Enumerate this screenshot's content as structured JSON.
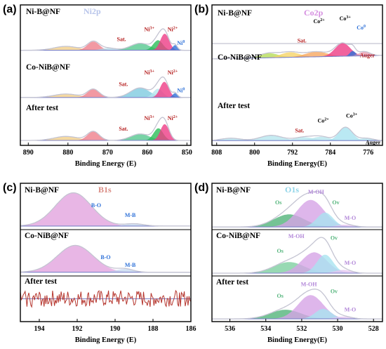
{
  "chart_data": [
    {
      "type": "area",
      "panel_label": "(a)",
      "core_level": "Ni2p",
      "xlabel": "Binding Energy (E)",
      "x_reversed": true,
      "xlim": [
        892,
        849
      ],
      "xticks": [
        890,
        880,
        870,
        860,
        850
      ],
      "core_color": "#b7c4ea",
      "rows": [
        {
          "label": "Ni-B@NF",
          "base": 0.12,
          "peaks": [
            {
              "center": 880.5,
              "height": 0.09,
              "width": 3.0,
              "color": "#f3d08a"
            },
            {
              "center": 873.6,
              "height": 0.2,
              "width": 1.5,
              "color": "#ef7f8c"
            },
            {
              "center": 869.8,
              "height": 0.05,
              "width": 1.8,
              "color": "#b7dde8"
            },
            {
              "center": 861.8,
              "height": 0.16,
              "width": 2.4,
              "color": "#56c890"
            },
            {
              "center": 857.3,
              "height": 0.23,
              "width": 1.2,
              "color": "#2bbd58"
            },
            {
              "center": 855.6,
              "height": 0.38,
              "width": 1.1,
              "color": "#ee3c86"
            },
            {
              "center": 853.0,
              "height": 0.12,
              "width": 0.6,
              "color": "#2e71d8"
            }
          ],
          "labels": [
            {
              "text": "Sat.",
              "x": 866.5,
              "y": 0.33,
              "color": "#b51e1e"
            },
            {
              "text": "Ni3+",
              "x": 859.5,
              "y": 0.56,
              "color": "#b51e1e"
            },
            {
              "text": "Ni2+",
              "x": 853.6,
              "y": 0.56,
              "color": "#b51e1e"
            },
            {
              "text": "Ni0",
              "x": 851.5,
              "y": 0.24,
              "color": "#2e71d8"
            }
          ]
        },
        {
          "label": "Co-NiB@NF",
          "base": 0.1,
          "peaks": [
            {
              "center": 880.5,
              "height": 0.08,
              "width": 3.0,
              "color": "#f3d08a"
            },
            {
              "center": 873.6,
              "height": 0.19,
              "width": 1.5,
              "color": "#ef7f8c"
            },
            {
              "center": 861.8,
              "height": 0.22,
              "width": 2.4,
              "color": "#7ecbe0"
            },
            {
              "center": 857.3,
              "height": 0.2,
              "width": 1.2,
              "color": "#b7e6ee"
            },
            {
              "center": 855.7,
              "height": 0.36,
              "width": 1.1,
              "color": "#ee3c86"
            },
            {
              "center": 853.0,
              "height": 0.1,
              "width": 0.6,
              "color": "#2e71d8"
            }
          ],
          "labels": [
            {
              "text": "Sat.",
              "x": 866.0,
              "y": 0.36,
              "color": "#b51e1e"
            },
            {
              "text": "Ni3+",
              "x": 859.5,
              "y": 0.63,
              "color": "#b51e1e"
            },
            {
              "text": "Ni2+",
              "x": 853.6,
              "y": 0.63,
              "color": "#b51e1e"
            },
            {
              "text": "Ni0",
              "x": 851.5,
              "y": 0.22,
              "color": "#2e71d8"
            }
          ]
        },
        {
          "label": "After test",
          "base": 0.12,
          "peaks": [
            {
              "center": 880.5,
              "height": 0.1,
              "width": 3.0,
              "color": "#f3d08a"
            },
            {
              "center": 873.6,
              "height": 0.22,
              "width": 1.5,
              "color": "#ef7f8c"
            },
            {
              "center": 861.8,
              "height": 0.16,
              "width": 2.4,
              "color": "#56c890"
            },
            {
              "center": 857.2,
              "height": 0.3,
              "width": 1.2,
              "color": "#2bbd58"
            },
            {
              "center": 855.6,
              "height": 0.4,
              "width": 1.1,
              "color": "#ee3c86"
            }
          ],
          "labels": [
            {
              "text": "Sat.",
              "x": 866.0,
              "y": 0.36,
              "color": "#b51e1e"
            },
            {
              "text": "Ni3+",
              "x": 859.5,
              "y": 0.62,
              "color": "#b51e1e"
            },
            {
              "text": "Ni2+",
              "x": 853.6,
              "y": 0.62,
              "color": "#b51e1e"
            }
          ]
        }
      ]
    },
    {
      "type": "area",
      "panel_label": "(b)",
      "core_level": "Co2p",
      "xlabel": "Binding Energy(E)",
      "x_reversed": true,
      "xlim": [
        809,
        773
      ],
      "xticks": [
        808,
        800,
        792,
        784,
        776
      ],
      "core_color": "#d58ee0",
      "rows": [
        {
          "label": "Ni-B@NF",
          "base": 0.1,
          "peaks": [],
          "labels": []
        },
        {
          "label": "Co-NiB@NF",
          "base": 0.8,
          "slope": 0.035,
          "peaks": [
            {
              "center": 797.0,
              "height": 0.09,
              "width": 2.0,
              "color": "#b6dd5a"
            },
            {
              "center": 792.5,
              "height": 0.1,
              "width": 2.0,
              "color": "#f6d469"
            },
            {
              "center": 787.0,
              "height": 0.1,
              "width": 2.3,
              "color": "#f7a860"
            },
            {
              "center": 781.4,
              "height": 0.26,
              "width": 1.6,
              "color": "#ee3c86"
            },
            {
              "center": 779.3,
              "height": 0.1,
              "width": 0.6,
              "color": "#2e71d8"
            },
            {
              "center": 776.8,
              "height": 0.08,
              "width": 1.2,
              "color": "#e8a0b4"
            }
          ],
          "labels": [
            {
              "text": "Sat.",
              "x": 790.0,
              "y": 1.09,
              "color": "#b51e1e"
            },
            {
              "text": "Co2+",
              "x": 786.4,
              "y": 1.47,
              "color": "#000000"
            },
            {
              "text": "Co3+",
              "x": 780.9,
              "y": 1.53,
              "color": "#000000"
            },
            {
              "text": "Co0",
              "x": 777.5,
              "y": 1.35,
              "color": "#2e71d8"
            },
            {
              "text": "Auger",
              "x": 776.2,
              "y": 0.8,
              "color": "#b51e1e"
            }
          ]
        },
        {
          "label": "After test",
          "base": 0.1,
          "peaks": [
            {
              "center": 805.0,
              "height": 0.05,
              "width": 2.0,
              "color": "#b7e6ee"
            },
            {
              "center": 796.5,
              "height": 0.11,
              "width": 2.3,
              "color": "#b7e6ee"
            },
            {
              "center": 789.5,
              "height": 0.07,
              "width": 2.0,
              "color": "#b7e6ee"
            },
            {
              "center": 786.0,
              "height": 0.08,
              "width": 1.8,
              "color": "#b7e6ee"
            },
            {
              "center": 780.8,
              "height": 0.28,
              "width": 1.4,
              "color": "#a9e3f0"
            },
            {
              "center": 776.5,
              "height": 0.05,
              "width": 1.5,
              "color": "#b7e6ee"
            }
          ],
          "labels": [
            {
              "text": "Sat.",
              "x": 790.5,
              "y": 0.27,
              "color": "#b51e1e"
            },
            {
              "text": "Co2+",
              "x": 785.5,
              "y": 0.48,
              "color": "#000000"
            },
            {
              "text": "Co3+",
              "x": 779.5,
              "y": 0.58,
              "color": "#000000"
            },
            {
              "text": "Auger",
              "x": 775.0,
              "y": 0.02,
              "color": "#000000"
            }
          ]
        }
      ]
    },
    {
      "type": "area",
      "panel_label": "(c)",
      "core_level": "B1s",
      "xlabel": "Binding Energy (E)",
      "x_reversed": true,
      "xlim": [
        195,
        186
      ],
      "xticks": [
        194,
        192,
        190,
        188,
        186
      ],
      "core_color": "#d98a82",
      "rows": [
        {
          "label": "Ni-B@NF",
          "base": 0.08,
          "peaks": [
            {
              "center": 192.2,
              "height": 0.74,
              "width": 0.95,
              "color": "#e2a4df"
            },
            {
              "center": 189.0,
              "height": 0.05,
              "width": 0.5,
              "color": "#c7d9f0"
            }
          ],
          "labels": [
            {
              "text": "B-O",
              "x": 191.0,
              "y": 0.5,
              "color": "#2e71d8"
            },
            {
              "text": "M-B",
              "x": 189.2,
              "y": 0.28,
              "color": "#2e71d8"
            }
          ]
        },
        {
          "label": "Co-NiB@NF",
          "base": 0.08,
          "peaks": [
            {
              "center": 192.1,
              "height": 0.58,
              "width": 0.95,
              "color": "#e2a4df"
            },
            {
              "center": 189.5,
              "height": 0.07,
              "width": 0.45,
              "color": "#c7d9f0"
            }
          ],
          "labels": [
            {
              "text": "B-O",
              "x": 190.5,
              "y": 0.36,
              "color": "#2e71d8"
            },
            {
              "text": "M-B",
              "x": 189.2,
              "y": 0.2,
              "color": "#2e71d8"
            }
          ]
        },
        {
          "label": "After test",
          "base": 0.5,
          "noise": 0.18,
          "peaks": [],
          "labels": []
        }
      ]
    },
    {
      "type": "area",
      "panel_label": "(d)",
      "core_level": "O1s",
      "xlabel": "Binding Energy(E)",
      "x_reversed": true,
      "xlim": [
        537,
        527.5
      ],
      "xticks": [
        536,
        534,
        532,
        530,
        528
      ],
      "core_color": "#8fd4e8",
      "rows": [
        {
          "label": "Ni-B@NF",
          "base": 0.06,
          "peaks": [
            {
              "center": 532.7,
              "height": 0.28,
              "width": 0.85,
              "color": "#52b47a"
            },
            {
              "center": 531.5,
              "height": 0.6,
              "width": 0.75,
              "color": "#d6a4e6"
            },
            {
              "center": 530.7,
              "height": 0.32,
              "width": 0.45,
              "color": "#a9e3f0"
            },
            {
              "center": 529.6,
              "height": 0.05,
              "width": 0.45,
              "color": "#e3c6ef"
            }
          ],
          "labels": [
            {
              "text": "Os",
              "x": 533.3,
              "y": 0.56,
              "color": "#52b47a"
            },
            {
              "text": "M-OH",
              "x": 531.2,
              "y": 0.8,
              "color": "#b185d8"
            },
            {
              "text": "Ov",
              "x": 530.1,
              "y": 0.56,
              "color": "#52b47a"
            },
            {
              "text": "M-O",
              "x": 529.3,
              "y": 0.22,
              "color": "#b185d8"
            }
          ]
        },
        {
          "label": "Co-NiB@NF",
          "base": 0.06,
          "peaks": [
            {
              "center": 532.7,
              "height": 0.24,
              "width": 0.85,
              "color": "#7ecfa0"
            },
            {
              "center": 531.3,
              "height": 0.45,
              "width": 0.7,
              "color": "#d6a4e6"
            },
            {
              "center": 530.7,
              "height": 0.4,
              "width": 0.45,
              "color": "#a9e3f0"
            },
            {
              "center": 529.7,
              "height": 0.07,
              "width": 0.45,
              "color": "#e3c6ef"
            }
          ],
          "labels": [
            {
              "text": "Os",
              "x": 533.2,
              "y": 0.5,
              "color": "#52b47a"
            },
            {
              "text": "M-OH",
              "x": 532.3,
              "y": 0.82,
              "color": "#b185d8"
            },
            {
              "text": "Ov",
              "x": 530.2,
              "y": 0.78,
              "color": "#52b47a"
            },
            {
              "text": "M-O",
              "x": 529.3,
              "y": 0.24,
              "color": "#b185d8"
            }
          ]
        },
        {
          "label": "After test",
          "base": 0.06,
          "peaks": [
            {
              "center": 532.9,
              "height": 0.2,
              "width": 0.85,
              "color": "#52b47a"
            },
            {
              "center": 531.5,
              "height": 0.52,
              "width": 0.7,
              "color": "#d6a4e6"
            },
            {
              "center": 530.8,
              "height": 0.22,
              "width": 0.45,
              "color": "#a9e3f0"
            },
            {
              "center": 529.7,
              "height": 0.05,
              "width": 0.45,
              "color": "#e3c6ef"
            }
          ],
          "labels": [
            {
              "text": "Os",
              "x": 533.2,
              "y": 0.52,
              "color": "#52b47a"
            },
            {
              "text": "M-OH",
              "x": 531.6,
              "y": 0.78,
              "color": "#b185d8"
            },
            {
              "text": "Ov",
              "x": 530.2,
              "y": 0.62,
              "color": "#52b47a"
            },
            {
              "text": "M-O",
              "x": 529.3,
              "y": 0.22,
              "color": "#b185d8"
            }
          ]
        }
      ]
    }
  ]
}
